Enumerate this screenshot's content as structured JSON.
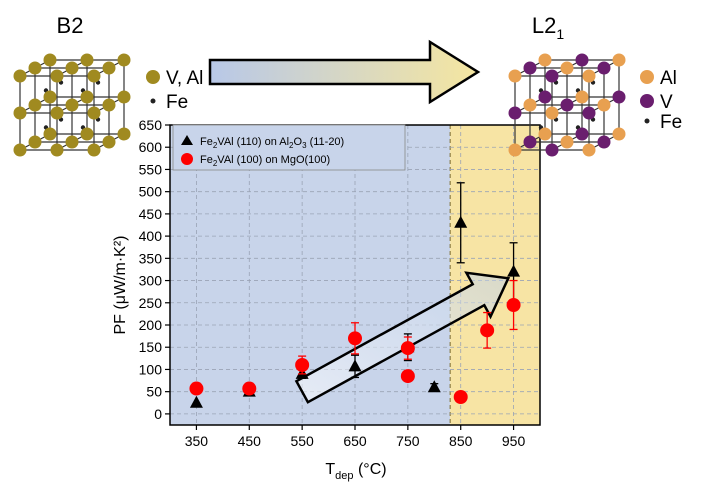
{
  "chart_data": {
    "type": "scatter",
    "xlabel": "T",
    "xlabel_sub": "dep",
    "xlabel_unit": " (°C)",
    "ylabel": "PF (μW/m·K²)",
    "xlim": [
      300,
      1000
    ],
    "ylim": [
      -25,
      650
    ],
    "x_ticks": [
      350,
      450,
      550,
      650,
      750,
      850,
      950
    ],
    "y_ticks": [
      0,
      50,
      100,
      150,
      200,
      250,
      300,
      350,
      400,
      450,
      500,
      550,
      600,
      650
    ],
    "grid": true,
    "legend_position": "top-left",
    "shaded_regions": [
      {
        "x": [
          300,
          830
        ],
        "color": "#c8d4ea"
      },
      {
        "x": [
          830,
          1000
        ],
        "color": "#f7e4a4"
      }
    ],
    "series": [
      {
        "name_parts": [
          "Fe",
          "2",
          "VAl (110) on Al",
          "2",
          "O",
          "3",
          " (11-20)"
        ],
        "marker": "triangle",
        "color": "#000000",
        "points": [
          {
            "x": 350,
            "y": 25,
            "err": 0
          },
          {
            "x": 450,
            "y": 50,
            "err": 0
          },
          {
            "x": 550,
            "y": 90,
            "err": 10
          },
          {
            "x": 650,
            "y": 107,
            "err": 25
          },
          {
            "x": 750,
            "y": 150,
            "err": 30
          },
          {
            "x": 800,
            "y": 60,
            "err": 8
          },
          {
            "x": 850,
            "y": 430,
            "err": 90
          },
          {
            "x": 950,
            "y": 320,
            "err": 65
          }
        ]
      },
      {
        "name_parts": [
          "Fe",
          "2",
          "VAl (100) on MgO(100)"
        ],
        "marker": "circle",
        "color": "#ff0000",
        "points": [
          {
            "x": 350,
            "y": 57,
            "err": 0
          },
          {
            "x": 450,
            "y": 57,
            "err": 0
          },
          {
            "x": 550,
            "y": 110,
            "err": 20
          },
          {
            "x": 650,
            "y": 170,
            "err": 35
          },
          {
            "x": 750,
            "y": 85,
            "err": 10
          },
          {
            "x": 750,
            "y": 148,
            "err": 25
          },
          {
            "x": 850,
            "y": 38,
            "err": 0
          },
          {
            "x": 900,
            "y": 188,
            "err": 40
          },
          {
            "x": 950,
            "y": 245,
            "err": 55
          }
        ]
      }
    ],
    "trend_arrow": {
      "from": [
        550,
        50
      ],
      "to": [
        940,
        305
      ]
    }
  },
  "structures": {
    "left": {
      "title": "B2",
      "keys": [
        {
          "label": "V, Al",
          "color": "#a08a20"
        },
        {
          "label": "Fe",
          "color": "#222222"
        }
      ]
    },
    "right": {
      "title_main": "L2",
      "title_sub": "1",
      "keys": [
        {
          "label": "Al",
          "color": "#e8a050"
        },
        {
          "label": "V",
          "color": "#6a1e6e"
        },
        {
          "label": "Fe",
          "color": "#222222"
        }
      ]
    },
    "transition_arrow": {
      "gradient_from": "#b8c8e8",
      "gradient_to": "#f5e6a0"
    }
  }
}
